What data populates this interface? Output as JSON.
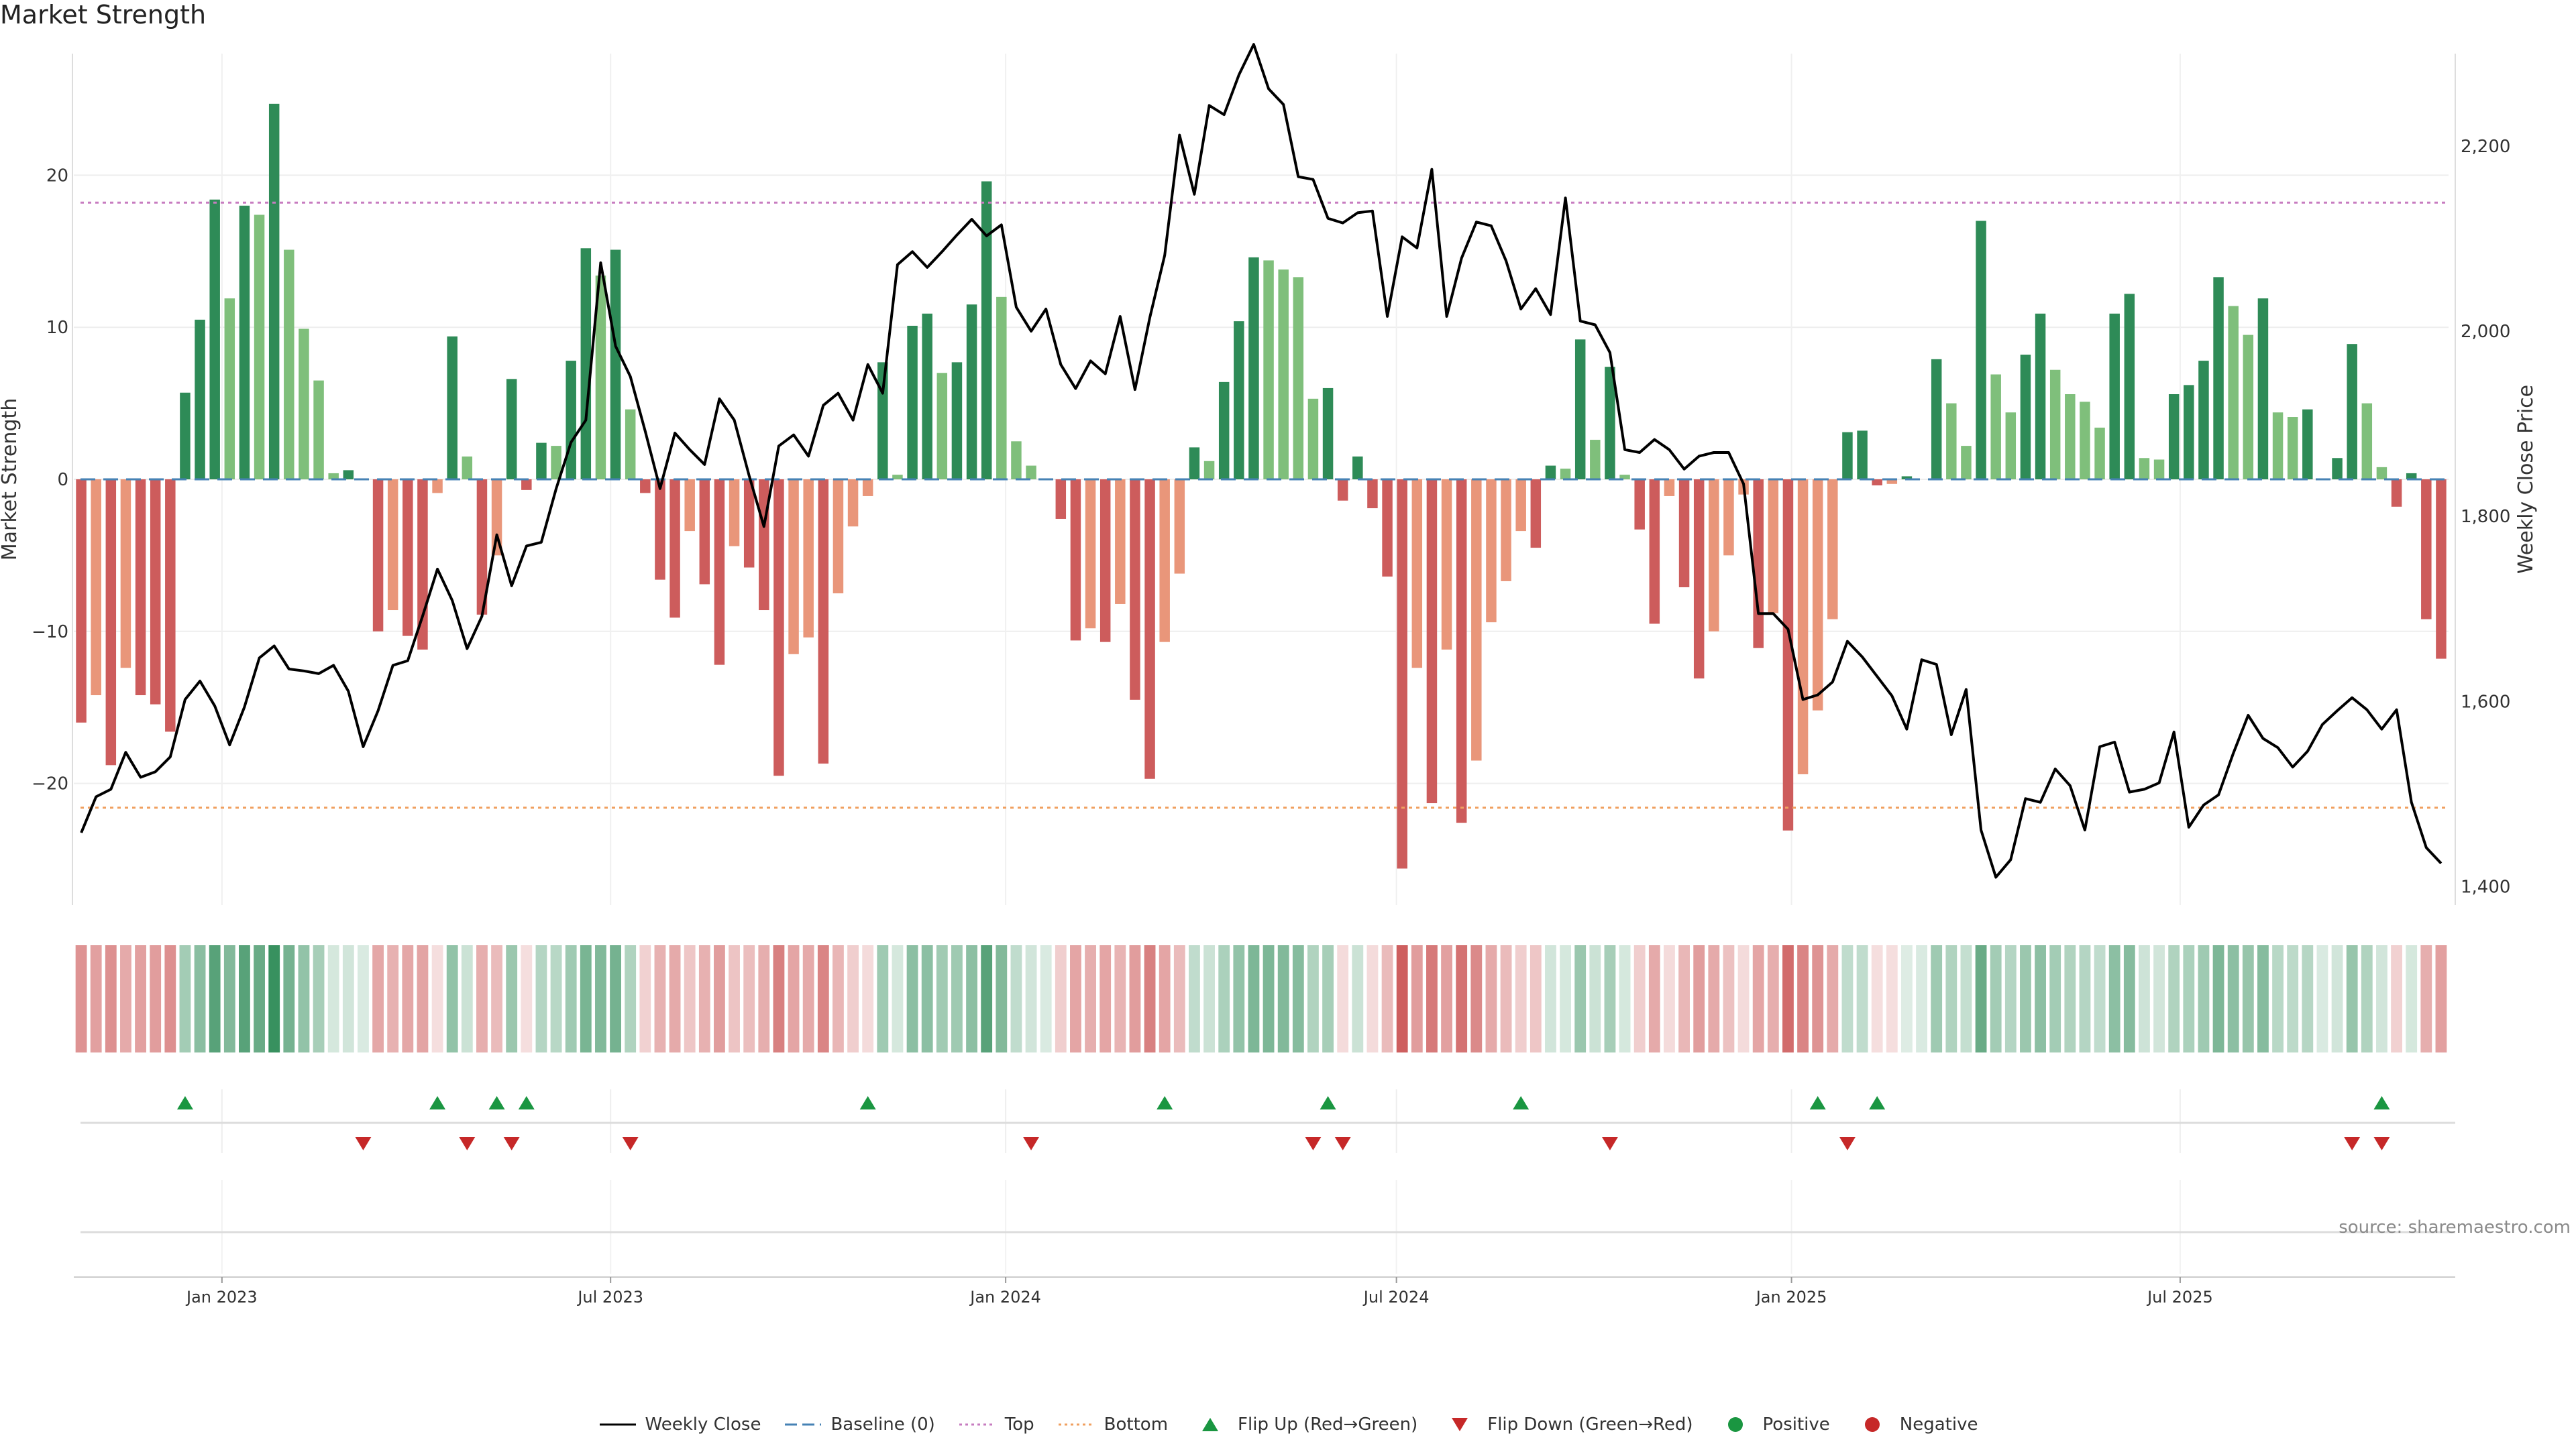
{
  "title": "Market Strength",
  "source": "source: sharemaestro.com",
  "colors": {
    "strong_green": "#2e8b57",
    "light_green": "#7fbf7b",
    "strong_red": "#cd5c5c",
    "light_red": "#e9967a",
    "price_line": "#000000",
    "baseline": "#4682b4",
    "top_line": "#c77cc0",
    "bottom_line": "#f0a060",
    "flip_up": "#1a9641",
    "flip_down": "#c62828"
  },
  "legend": [
    {
      "label": "Weekly Close",
      "symbol": "line-solid"
    },
    {
      "label": "Baseline (0)",
      "symbol": "line-dash"
    },
    {
      "label": "Top",
      "symbol": "line-dot-top"
    },
    {
      "label": "Bottom",
      "symbol": "line-dot-bottom"
    },
    {
      "label": "Flip Up (Red→Green)",
      "symbol": "triangle-up"
    },
    {
      "label": "Flip Down (Green→Red)",
      "symbol": "triangle-down"
    },
    {
      "label": "Positive",
      "symbol": "dot-green"
    },
    {
      "label": "Negative",
      "symbol": "dot-red"
    }
  ],
  "chart_data": {
    "type": "bar",
    "title": "Market Strength",
    "ylabel": "Market Strength",
    "y2label": "Weekly Close Price",
    "ylim": [
      -28,
      28
    ],
    "y2lim": [
      1380,
      2300
    ],
    "yticks": [
      -20,
      -10,
      0,
      10,
      20
    ],
    "y2ticks": [
      "1,400",
      "1,600",
      "1,800",
      "2,000",
      "2,200"
    ],
    "y2tick_values": [
      1400,
      1600,
      1800,
      2000,
      2200
    ],
    "top_level": 18.2,
    "bottom_level": -21.6,
    "x_start": "2022-10-24",
    "x_end": "2025-11-03",
    "xticks": [
      {
        "label": "Jan 2023",
        "date": "2023-01-01"
      },
      {
        "label": "Jul 2023",
        "date": "2023-07-01"
      },
      {
        "label": "Jan 2024",
        "date": "2024-01-01"
      },
      {
        "label": "Jul 2024",
        "date": "2024-07-01"
      },
      {
        "label": "Jan 2025",
        "date": "2025-01-01"
      },
      {
        "label": "Jul 2025",
        "date": "2025-07-01"
      }
    ],
    "grid": true,
    "legend_position": "bottom-center",
    "strength": [
      -16,
      -14.2,
      -18.8,
      -12.4,
      -14.2,
      -14.8,
      -16.6,
      5.7,
      10.5,
      18.4,
      11.9,
      18,
      17.4,
      24.7,
      15.1,
      9.9,
      6.5,
      0.4,
      0.6,
      0,
      -10,
      -8.6,
      -10.3,
      -11.2,
      -0.9,
      9.4,
      1.5,
      -8.9,
      -5,
      6.6,
      -0.7,
      2.4,
      2.2,
      7.8,
      15.2,
      13.4,
      15.1,
      4.6,
      -0.9,
      -6.6,
      -9.1,
      -3.4,
      -6.9,
      -12.2,
      -4.4,
      -5.8,
      -8.6,
      -19.5,
      -11.5,
      -10.4,
      -18.7,
      -7.5,
      -3.1,
      -1.1,
      7.7,
      0.3,
      10.1,
      10.9,
      7,
      7.7,
      11.5,
      19.6,
      12,
      2.5,
      0.9,
      0,
      -2.6,
      -10.6,
      -9.8,
      -10.7,
      -8.2,
      -14.5,
      -19.7,
      -10.7,
      -6.2,
      2.1,
      1.2,
      6.4,
      10.4,
      14.6,
      14.4,
      13.8,
      13.3,
      5.3,
      6,
      -1.4,
      1.5,
      -1.9,
      -6.4,
      -25.6,
      -12.4,
      -21.3,
      -11.2,
      -22.6,
      -18.5,
      -9.4,
      -6.7,
      -3.4,
      -4.5,
      0.9,
      0.7,
      9.2,
      2.6,
      7.4,
      0.3,
      -3.3,
      -9.5,
      -1.1,
      -7.1,
      -13.1,
      -10,
      -5,
      -1,
      -11.1,
      -8.8,
      -23.1,
      -19.4,
      -15.2,
      -9.2,
      3.1,
      3.2,
      -0.4,
      -0.3,
      0.2,
      0,
      7.9,
      5,
      2.2,
      17,
      6.9,
      4.4,
      8.2,
      10.9,
      7.2,
      5.6,
      5.1,
      3.4,
      10.9,
      12.2,
      1.4,
      1.3,
      5.6,
      6.2,
      7.8,
      13.3,
      11.4,
      9.5,
      11.9,
      4.4,
      4.1,
      4.6,
      0,
      1.4,
      8.9,
      5,
      0.8,
      -1.8,
      0.4,
      -9.2,
      -11.8
    ],
    "weekly_close": [
      1458,
      1497,
      1505,
      1545,
      1518,
      1524,
      1540,
      1602,
      1622,
      1595,
      1553,
      1594,
      1647,
      1660,
      1635,
      1633,
      1630,
      1639,
      1611,
      1551,
      1590,
      1639,
      1644,
      1692,
      1743,
      1709,
      1657,
      1692,
      1780,
      1725,
      1768,
      1772,
      1830,
      1880,
      1904,
      2074,
      1984,
      1951,
      1892,
      1830,
      1890,
      1872,
      1856,
      1927,
      1904,
      1844,
      1789,
      1876,
      1888,
      1865,
      1920,
      1933,
      1904,
      1964,
      1933,
      2072,
      2086,
      2069,
      2086,
      2104,
      2121,
      2103,
      2115,
      2026,
      2000,
      2024,
      1964,
      1938,
      1968,
      1954,
      2016,
      1937,
      2015,
      2082,
      2212,
      2148,
      2244,
      2234,
      2277,
      2310,
      2262,
      2245,
      2167,
      2164,
      2122,
      2117,
      2128,
      2130,
      2016,
      2102,
      2090,
      2175,
      2016,
      2079,
      2118,
      2114,
      2076,
      2024,
      2046,
      2018,
      2144,
      2011,
      2007,
      1977,
      1872,
      1869,
      1883,
      1872,
      1851,
      1865,
      1869,
      1869,
      1835,
      1695,
      1695,
      1678,
      1602,
      1607,
      1621,
      1665,
      1648,
      1627,
      1606,
      1570,
      1645,
      1640,
      1564,
      1613,
      1461,
      1410,
      1429,
      1495,
      1491,
      1527,
      1509,
      1461,
      1551,
      1556,
      1502,
      1505,
      1512,
      1567,
      1464,
      1488,
      1499,
      1544,
      1585,
      1560,
      1550,
      1529,
      1546,
      1575,
      1590,
      1604,
      1591,
      1570,
      1591,
      1491,
      1442,
      1425
    ],
    "heat_intensity": [
      0.66,
      0.58,
      0.68,
      0.52,
      0.58,
      0.6,
      0.68,
      0.44,
      0.56,
      0.8,
      0.6,
      0.8,
      0.72,
      0.95,
      0.66,
      0.52,
      0.42,
      0.2,
      0.22,
      0.18,
      0.54,
      0.48,
      0.54,
      0.56,
      0.2,
      0.52,
      0.25,
      0.5,
      0.42,
      0.48,
      0.2,
      0.36,
      0.34,
      0.46,
      0.64,
      0.6,
      0.66,
      0.38,
      0.28,
      0.48,
      0.52,
      0.35,
      0.48,
      0.6,
      0.36,
      0.4,
      0.5,
      0.78,
      0.55,
      0.52,
      0.75,
      0.45,
      0.3,
      0.22,
      0.46,
      0.2,
      0.55,
      0.55,
      0.45,
      0.46,
      0.55,
      0.8,
      0.6,
      0.3,
      0.22,
      0.18,
      0.3,
      0.55,
      0.5,
      0.55,
      0.46,
      0.6,
      0.78,
      0.55,
      0.42,
      0.3,
      0.25,
      0.4,
      0.52,
      0.62,
      0.62,
      0.6,
      0.58,
      0.38,
      0.42,
      0.22,
      0.25,
      0.22,
      0.42,
      0.98,
      0.6,
      0.82,
      0.58,
      0.86,
      0.72,
      0.52,
      0.42,
      0.3,
      0.35,
      0.22,
      0.2,
      0.48,
      0.25,
      0.42,
      0.2,
      0.3,
      0.52,
      0.22,
      0.44,
      0.6,
      0.52,
      0.38,
      0.22,
      0.55,
      0.5,
      0.9,
      0.75,
      0.66,
      0.52,
      0.3,
      0.3,
      0.2,
      0.2,
      0.16,
      0.18,
      0.46,
      0.38,
      0.28,
      0.72,
      0.44,
      0.36,
      0.48,
      0.55,
      0.44,
      0.38,
      0.36,
      0.3,
      0.55,
      0.58,
      0.24,
      0.22,
      0.38,
      0.4,
      0.46,
      0.62,
      0.55,
      0.5,
      0.58,
      0.34,
      0.32,
      0.35,
      0.18,
      0.22,
      0.5,
      0.38,
      0.22,
      0.28,
      0.2,
      0.5,
      0.58
    ],
    "flip_up": [
      7,
      24,
      28,
      30,
      53,
      73,
      84,
      97,
      117,
      121,
      155
    ],
    "flip_down": [
      19,
      26,
      29,
      37,
      64,
      83,
      85,
      103,
      119,
      153,
      155
    ]
  }
}
